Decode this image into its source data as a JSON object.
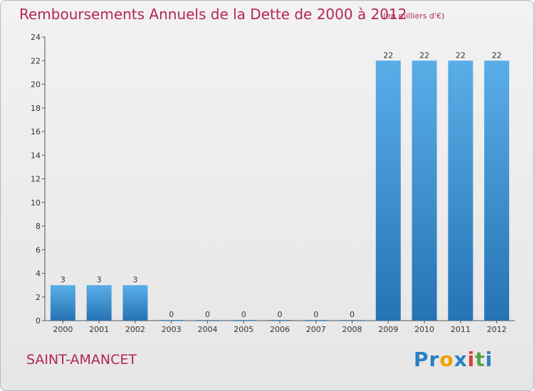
{
  "header": {
    "title": "Remboursements Annuels de la Dette de 2000 à 2012",
    "subtitle": "(en milliers d'€)"
  },
  "footer": {
    "commune": "SAINT-AMANCET",
    "logo_letters": [
      "P",
      "r",
      "o",
      "x",
      "i",
      "t",
      "i"
    ],
    "logo_colors": [
      "#2b7fc2",
      "#2b7fc2",
      "#f0a000",
      "#2b7fc2",
      "#e03c3c",
      "#59a14f",
      "#2b7fc2"
    ]
  },
  "chart_data": {
    "type": "bar",
    "categories": [
      "2000",
      "2001",
      "2002",
      "2003",
      "2004",
      "2005",
      "2006",
      "2007",
      "2008",
      "2009",
      "2010",
      "2011",
      "2012"
    ],
    "values": [
      3,
      3,
      3,
      0,
      0,
      0,
      0,
      0,
      0,
      22,
      22,
      22,
      22
    ],
    "data_labels": [
      "3",
      "3",
      "3",
      "0",
      "0",
      "0",
      "0",
      "0",
      "0",
      "22",
      "22",
      "22",
      "22"
    ],
    "ylim": [
      0,
      24
    ],
    "yticks": [
      0,
      2,
      4,
      6,
      8,
      10,
      12,
      14,
      16,
      18,
      20,
      22,
      24
    ],
    "grid": false,
    "bar_color_top": "#5aaee8",
    "bar_color_bottom": "#2673b3"
  }
}
